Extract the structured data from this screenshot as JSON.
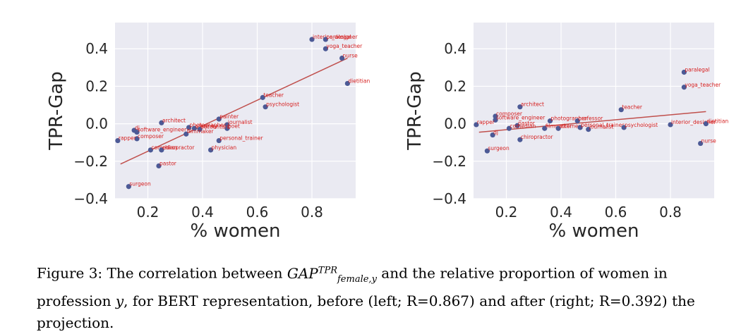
{
  "chart_data": [
    {
      "type": "scatter",
      "panel": "left",
      "xlabel": "% women",
      "ylabel": "TPR-Gap",
      "xlim": [
        0.08,
        0.96
      ],
      "ylim": [
        -0.4,
        0.54
      ],
      "xticks": [
        0.2,
        0.4,
        0.6,
        0.8
      ],
      "yticks": [
        -0.4,
        -0.2,
        0.0,
        0.2,
        0.4
      ],
      "xtick_labels": [
        "0.2",
        "0.4",
        "0.6",
        "0.8"
      ],
      "ytick_labels": [
        "−0.4",
        "−0.2",
        "0.0",
        "0.2",
        "0.4"
      ],
      "grid": true,
      "fit_line": {
        "x": [
          0.1,
          0.93
        ],
        "y": [
          -0.215,
          0.35
        ]
      },
      "points": [
        {
          "label": "interior_designer",
          "x": 0.8,
          "y": 0.45
        },
        {
          "label": "paralegal",
          "x": 0.85,
          "y": 0.45
        },
        {
          "label": "yoga_teacher",
          "x": 0.85,
          "y": 0.4
        },
        {
          "label": "nurse",
          "x": 0.91,
          "y": 0.35
        },
        {
          "label": "dietitian",
          "x": 0.93,
          "y": 0.215
        },
        {
          "label": "teacher",
          "x": 0.62,
          "y": 0.14
        },
        {
          "label": "psychologist",
          "x": 0.63,
          "y": 0.09
        },
        {
          "label": "painter",
          "x": 0.46,
          "y": 0.025
        },
        {
          "label": "journalist",
          "x": 0.49,
          "y": -0.005
        },
        {
          "label": "poet",
          "x": 0.49,
          "y": -0.025
        },
        {
          "label": "architect",
          "x": 0.25,
          "y": 0.005
        },
        {
          "label": "photographer",
          "x": 0.35,
          "y": -0.02
        },
        {
          "label": "attorney",
          "x": 0.37,
          "y": -0.025
        },
        {
          "label": "accountant",
          "x": 0.39,
          "y": -0.03
        },
        {
          "label": "filmmaker",
          "x": 0.34,
          "y": -0.055
        },
        {
          "label": "dj",
          "x": 0.15,
          "y": -0.035
        },
        {
          "label": "software_engineer",
          "x": 0.16,
          "y": -0.045
        },
        {
          "label": "composer",
          "x": 0.16,
          "y": -0.08
        },
        {
          "label": "rapper",
          "x": 0.09,
          "y": -0.09
        },
        {
          "label": "personal_trainer",
          "x": 0.46,
          "y": -0.09
        },
        {
          "label": "comedian",
          "x": 0.21,
          "y": -0.14
        },
        {
          "label": "chiropractor",
          "x": 0.25,
          "y": -0.14
        },
        {
          "label": "physician",
          "x": 0.43,
          "y": -0.14
        },
        {
          "label": "pastor",
          "x": 0.24,
          "y": -0.225
        },
        {
          "label": "surgeon",
          "x": 0.13,
          "y": -0.335
        }
      ]
    },
    {
      "type": "scatter",
      "panel": "right",
      "xlabel": "% women",
      "ylabel": "TPR-Gap",
      "xlim": [
        0.08,
        0.96
      ],
      "ylim": [
        -0.4,
        0.54
      ],
      "xticks": [
        0.2,
        0.4,
        0.6,
        0.8
      ],
      "yticks": [
        -0.4,
        -0.2,
        0.0,
        0.2,
        0.4
      ],
      "xtick_labels": [
        "0.2",
        "0.4",
        "0.6",
        "0.8"
      ],
      "ytick_labels": [
        "−0.4",
        "−0.2",
        "0.0",
        "0.2",
        "0.4"
      ],
      "grid": true,
      "fit_line": {
        "x": [
          0.1,
          0.93
        ],
        "y": [
          -0.045,
          0.065
        ]
      },
      "points": [
        {
          "label": "paralegal",
          "x": 0.85,
          "y": 0.275
        },
        {
          "label": "yoga_teacher",
          "x": 0.85,
          "y": 0.195
        },
        {
          "label": "architect",
          "x": 0.25,
          "y": 0.09
        },
        {
          "label": "teacher",
          "x": 0.62,
          "y": 0.075
        },
        {
          "label": "composer",
          "x": 0.16,
          "y": 0.04
        },
        {
          "label": "software_engineer",
          "x": 0.16,
          "y": 0.02
        },
        {
          "label": "photographer",
          "x": 0.36,
          "y": 0.015
        },
        {
          "label": "professor",
          "x": 0.46,
          "y": 0.015
        },
        {
          "label": "interior_designer",
          "x": 0.8,
          "y": -0.005
        },
        {
          "label": "dietitian",
          "x": 0.93,
          "y": 0.0
        },
        {
          "label": "rapper",
          "x": 0.09,
          "y": -0.005
        },
        {
          "label": "pastor",
          "x": 0.24,
          "y": -0.01
        },
        {
          "label": "comedian",
          "x": 0.21,
          "y": -0.025
        },
        {
          "label": "filmmaker",
          "x": 0.34,
          "y": -0.025
        },
        {
          "label": "attorney",
          "x": 0.39,
          "y": -0.025
        },
        {
          "label": "personal_trainer",
          "x": 0.47,
          "y": -0.02
        },
        {
          "label": "journalist",
          "x": 0.5,
          "y": -0.03
        },
        {
          "label": "psychologist",
          "x": 0.63,
          "y": -0.02
        },
        {
          "label": "dj",
          "x": 0.15,
          "y": -0.06
        },
        {
          "label": "chiropractor",
          "x": 0.25,
          "y": -0.085
        },
        {
          "label": "nurse",
          "x": 0.91,
          "y": -0.105
        },
        {
          "label": "surgeon",
          "x": 0.13,
          "y": -0.145
        }
      ]
    }
  ],
  "caption": {
    "prefix": "Figure 3: The correlation between ",
    "math_base": "GAP",
    "math_sup": "TPR",
    "math_sub": "female,y",
    "text_1": " and the relative proportion of women in profession ",
    "var_y": "y",
    "text_2": ", for BERT representation, before (left; R=0.867) and after (right; R=0.392) the projection."
  }
}
